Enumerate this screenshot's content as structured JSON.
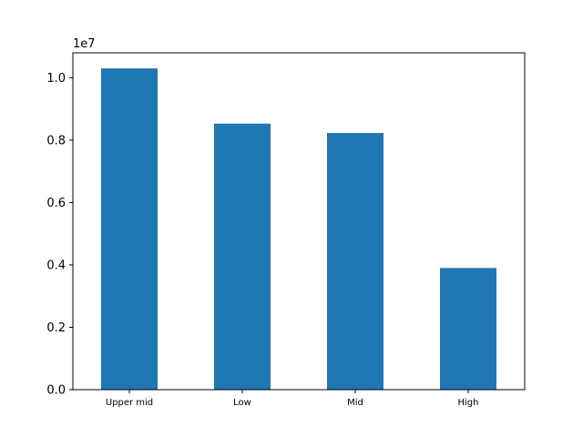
{
  "chart_data": {
    "type": "bar",
    "categories": [
      "Upper mid",
      "Low",
      "Mid",
      "High"
    ],
    "values": [
      10300000,
      8530000,
      8230000,
      3900000
    ],
    "ylim": [
      0,
      10800000
    ],
    "yticks": [
      0,
      2000000,
      4000000,
      6000000,
      8000000,
      10000000
    ],
    "ytick_labels": [
      "0.0",
      "0.2",
      "0.4",
      "0.6",
      "0.8",
      "1.0"
    ],
    "offset_label": "1e7",
    "bar_color": "#1f77b4",
    "grid": false,
    "legend": "none"
  }
}
